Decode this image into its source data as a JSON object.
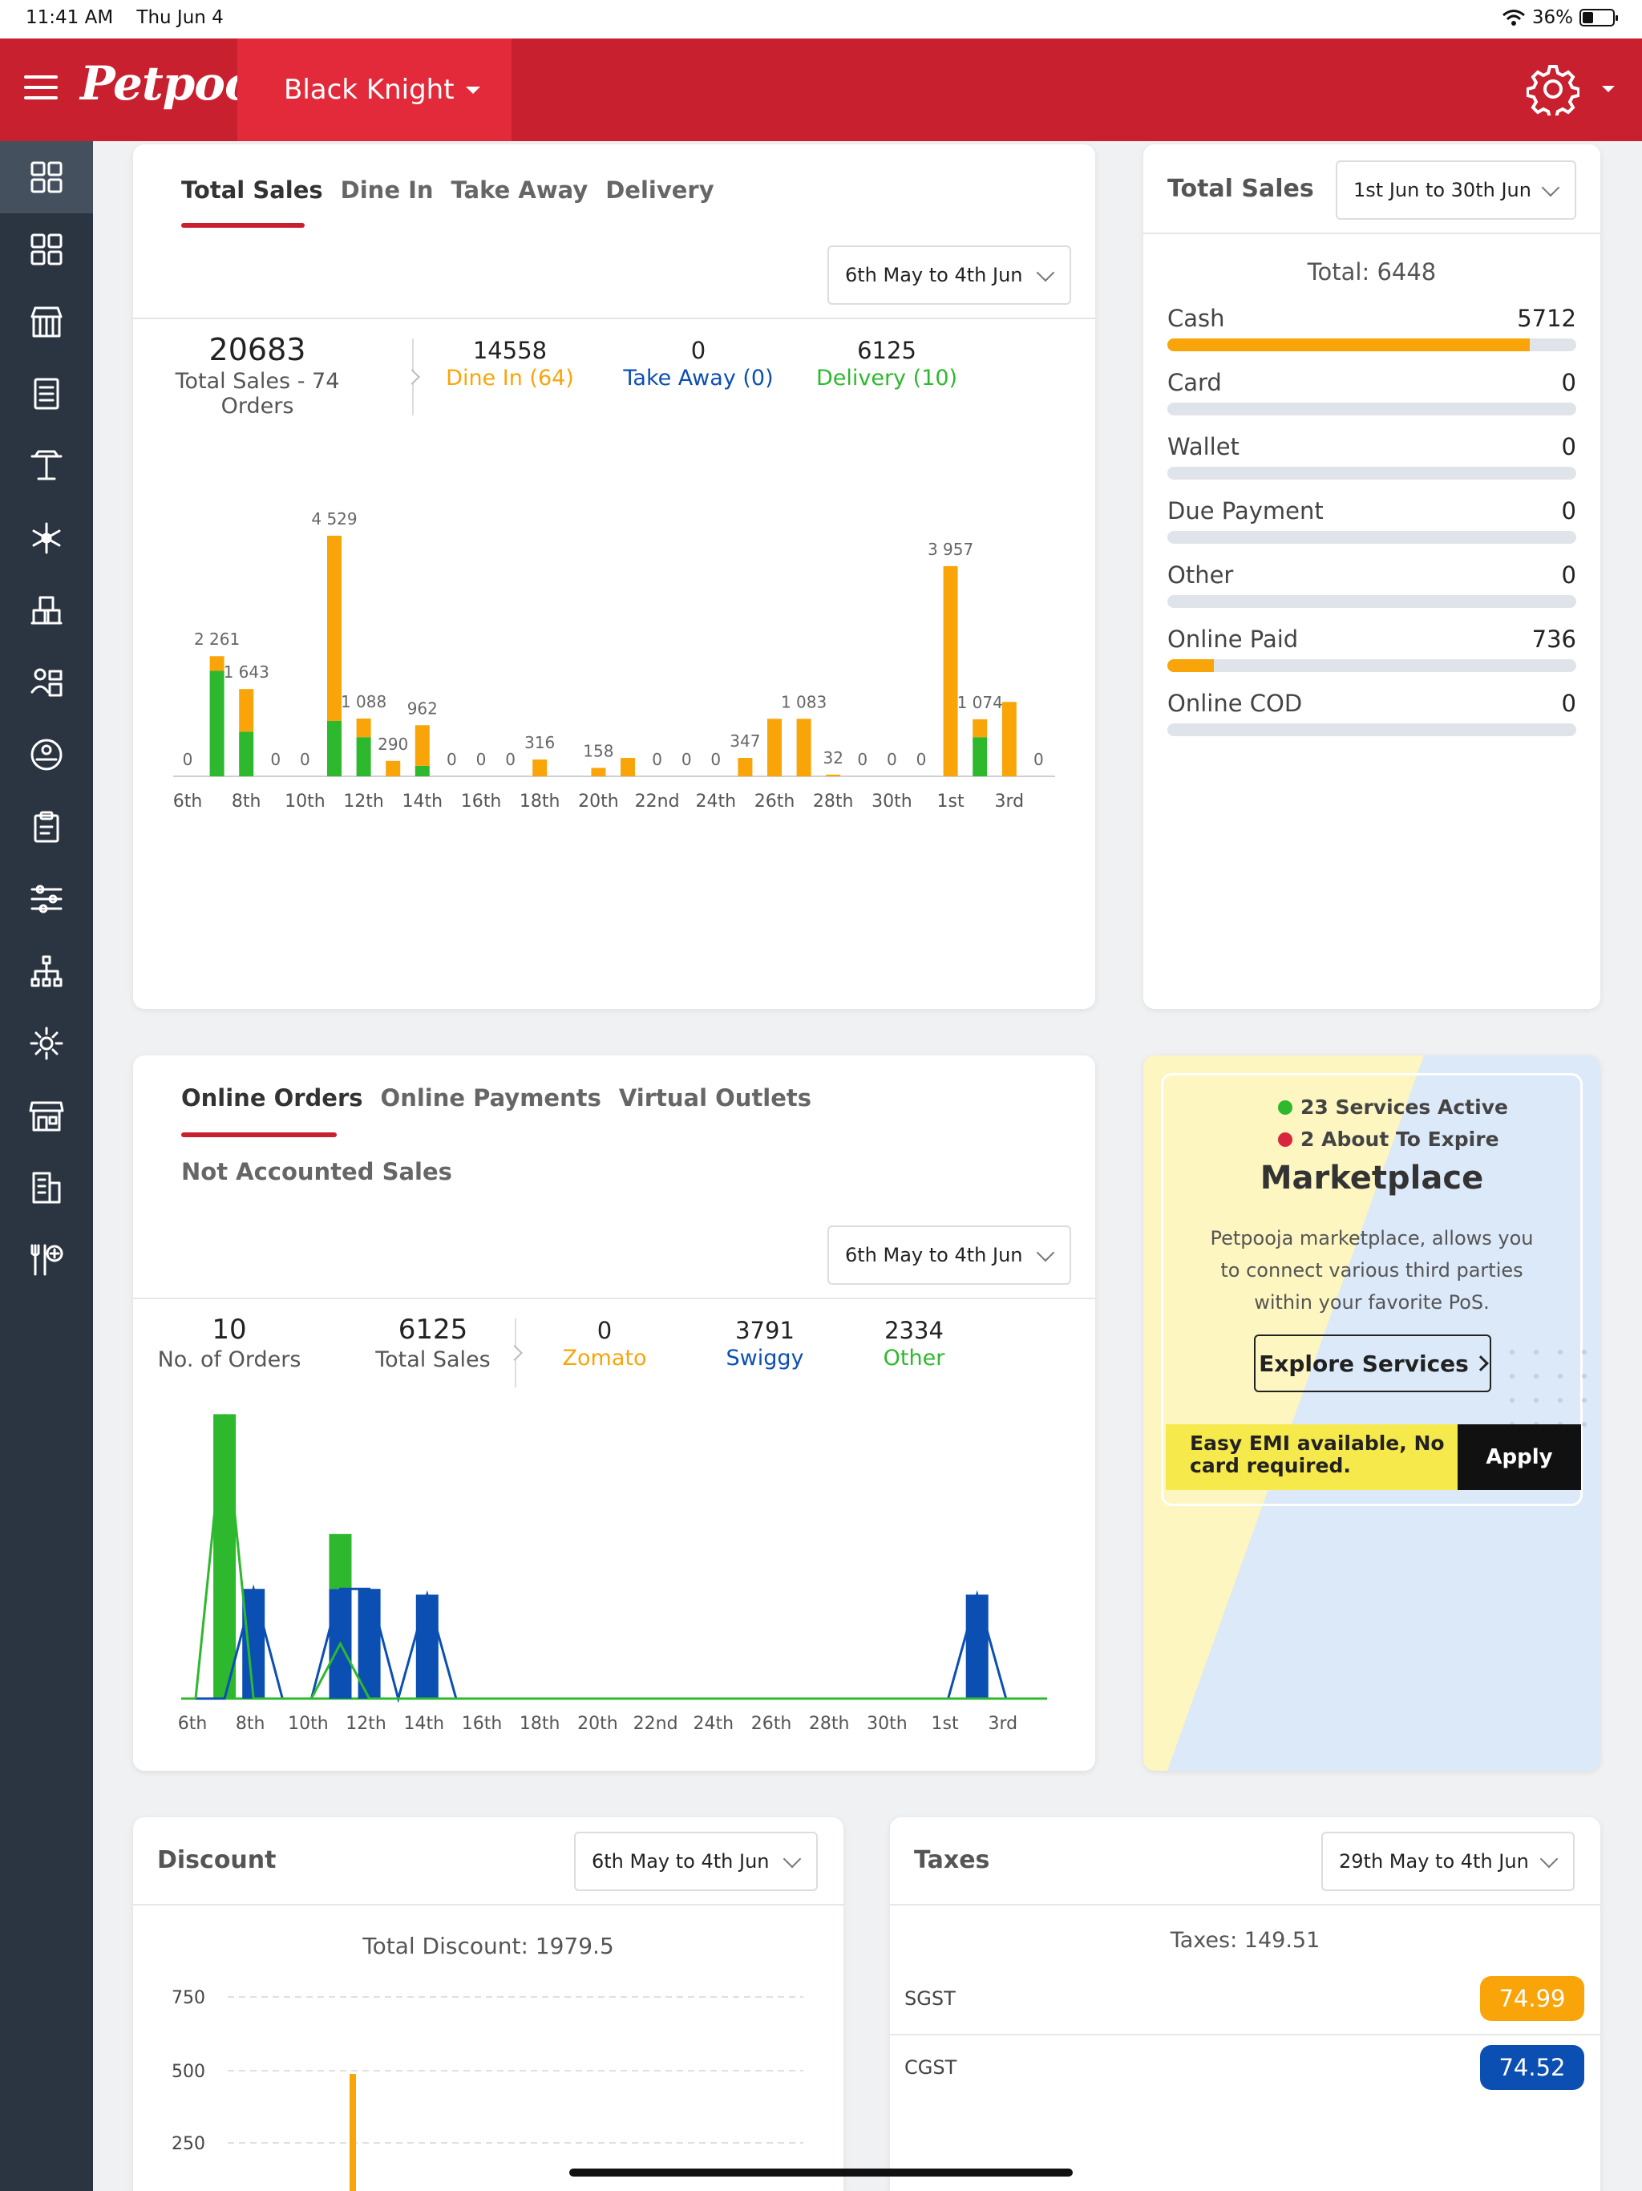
{
  "status_bar": {
    "time": "11:41 AM",
    "date": "Thu Jun 4",
    "battery": "36%",
    "battery_level": 0.36
  },
  "header": {
    "logo": "Petpooja",
    "outlet": "Black Knight"
  },
  "colors": {
    "brand": "#c8202f",
    "dine_in": "#f9a50a",
    "take_away": "#0b4fb3",
    "delivery": "#2eb82e",
    "sidebar": "#2b3441"
  },
  "sidebar": {
    "items": [
      {
        "icon": "dashboard-icon",
        "active": true
      },
      {
        "icon": "grid-icon"
      },
      {
        "icon": "store-icon"
      },
      {
        "icon": "receipt-icon"
      },
      {
        "icon": "table-icon"
      },
      {
        "icon": "snowflake-icon"
      },
      {
        "icon": "inventory-icon"
      },
      {
        "icon": "users-icon"
      },
      {
        "icon": "bowl-icon"
      },
      {
        "icon": "clipboard-icon"
      },
      {
        "icon": "sliders-icon"
      },
      {
        "icon": "hierarchy-icon"
      },
      {
        "icon": "settings-icon"
      },
      {
        "icon": "shop-icon"
      },
      {
        "icon": "building-icon"
      },
      {
        "icon": "menu-add-icon"
      }
    ]
  },
  "total_sales_card": {
    "tabs": [
      "Total Sales",
      "Dine In",
      "Take Away",
      "Delivery"
    ],
    "date_range": "6th May to 4th Jun",
    "total": "20683",
    "total_label": "Total Sales - 74 Orders",
    "dine_in_value": "14558",
    "dine_in_label": "Dine In (64)",
    "take_away_value": "0",
    "take_away_label": "Take Away (0)",
    "delivery_value": "6125",
    "delivery_label": "Delivery (10)"
  },
  "payments_card": {
    "title": "Total Sales",
    "date_range": "1st Jun to 30th Jun",
    "total_text": "Total: 6448",
    "rows": [
      {
        "label": "Cash",
        "value": "5712",
        "fraction": 0.886
      },
      {
        "label": "Card",
        "value": "0",
        "fraction": 0
      },
      {
        "label": "Wallet",
        "value": "0",
        "fraction": 0
      },
      {
        "label": "Due Payment",
        "value": "0",
        "fraction": 0
      },
      {
        "label": "Other",
        "value": "0",
        "fraction": 0
      },
      {
        "label": "Online Paid",
        "value": "736",
        "fraction": 0.114
      },
      {
        "label": "Online COD",
        "value": "0",
        "fraction": 0
      }
    ]
  },
  "online_card": {
    "tabs": [
      "Online Orders",
      "Online Payments",
      "Virtual Outlets"
    ],
    "subtab": "Not Accounted Sales",
    "date_range": "6th May to 4th Jun",
    "orders": "10",
    "orders_label": "No. of Orders",
    "sales": "6125",
    "sales_label": "Total Sales",
    "zomato_value": "0",
    "zomato_label": "Zomato",
    "swiggy_value": "3791",
    "swiggy_label": "Swiggy",
    "other_value": "2334",
    "other_label": "Other"
  },
  "marketplace": {
    "active_text": "23 Services Active",
    "expire_text": "2 About To Expire",
    "title": "Marketplace",
    "desc_lines": [
      "Petpooja marketplace, allows you",
      "to connect various third parties",
      "within your favorite PoS."
    ],
    "explore": "Explore Services",
    "emi_text": "Easy EMI available, No card required.",
    "apply": "Apply"
  },
  "discount_card": {
    "title": "Discount",
    "date_range": "6th May to 4th Jun",
    "total_text": "Total Discount: 1979.5"
  },
  "taxes_card": {
    "title": "Taxes",
    "date_range": "29th May to 4th Jun",
    "total_text": "Taxes: 149.51",
    "sgst_label": "SGST",
    "sgst_value": "74.99",
    "cgst_label": "CGST",
    "cgst_value": "74.52"
  },
  "chart_data": [
    {
      "type": "bar",
      "stacked": true,
      "categories": [
        "6th",
        "7th",
        "8th",
        "9th",
        "10th",
        "11th",
        "12th",
        "13th",
        "14th",
        "15th",
        "16th",
        "17th",
        "18th",
        "19th",
        "20th",
        "21st",
        "22nd",
        "23rd",
        "24th",
        "25th",
        "26th",
        "27th",
        "28th",
        "29th",
        "30th",
        "31st",
        "1st",
        "2nd",
        "3rd",
        "4th"
      ],
      "tick_labels": [
        "6th",
        "8th",
        "10th",
        "12th",
        "14th",
        "16th",
        "18th",
        "20th",
        "22nd",
        "24th",
        "26th",
        "28th",
        "30th",
        "1st",
        "3rd"
      ],
      "totals": [
        0,
        2261,
        1643,
        0,
        0,
        4529,
        1088,
        290,
        962,
        0,
        0,
        0,
        316,
        0,
        158,
        347,
        0,
        0,
        0,
        347,
        1083,
        1083,
        32,
        0,
        0,
        0,
        3957,
        1074,
        1400,
        0
      ],
      "data_labels": [
        "0",
        "2 261",
        "1 643",
        "0",
        "0",
        "4 529",
        "1 088",
        "290",
        "962",
        "0",
        "0",
        "0",
        "316",
        "",
        "158",
        "",
        "0",
        "0",
        "0",
        "347",
        "",
        "1 083",
        "32",
        "0",
        "0",
        "0",
        "3 957",
        "1 074",
        "",
        "0"
      ],
      "series": [
        {
          "name": "Dine In",
          "values": [
            0,
            276,
            804,
            0,
            0,
            3487,
            351,
            290,
            764,
            0,
            0,
            0,
            316,
            0,
            158,
            347,
            0,
            0,
            0,
            347,
            1083,
            1083,
            32,
            0,
            0,
            0,
            3957,
            337,
            1400,
            0
          ]
        },
        {
          "name": "Delivery",
          "values": [
            0,
            1985,
            839,
            0,
            0,
            1042,
            737,
            0,
            198,
            0,
            0,
            0,
            0,
            0,
            0,
            0,
            0,
            0,
            0,
            0,
            0,
            0,
            0,
            0,
            0,
            0,
            0,
            737,
            0,
            0
          ]
        }
      ]
    },
    {
      "type": "bar",
      "stacked": true,
      "categories": [
        "6th",
        "7th",
        "8th",
        "9th",
        "10th",
        "11th",
        "12th",
        "13th",
        "14th",
        "15th",
        "16th",
        "17th",
        "18th",
        "19th",
        "20th",
        "21st",
        "22nd",
        "23rd",
        "24th",
        "25th",
        "26th",
        "27th",
        "28th",
        "29th",
        "30th",
        "31st",
        "1st",
        "2nd",
        "3rd",
        "4th"
      ],
      "tick_labels": [
        "6th",
        "8th",
        "10th",
        "12th",
        "14th",
        "16th",
        "18th",
        "20th",
        "22nd",
        "24th",
        "26th",
        "28th",
        "30th",
        "1st",
        "3rd"
      ],
      "series": [
        {
          "name": "Swiggy",
          "values": [
            0,
            0,
            760,
            0,
            0,
            760,
            760,
            0,
            720,
            0,
            0,
            0,
            0,
            0,
            0,
            0,
            0,
            0,
            0,
            0,
            0,
            0,
            0,
            0,
            0,
            0,
            0,
            720,
            0,
            0
          ]
        },
        {
          "name": "Other",
          "values": [
            0,
            1970,
            0,
            0,
            0,
            380,
            0,
            0,
            0,
            0,
            0,
            0,
            0,
            0,
            0,
            0,
            0,
            0,
            0,
            0,
            0,
            0,
            0,
            0,
            0,
            0,
            0,
            0,
            0,
            0
          ]
        }
      ]
    },
    {
      "type": "bar",
      "title": "Total Discount: 1979.5",
      "y_ticks": [
        "750",
        "500",
        "250"
      ],
      "ylim": [
        0,
        750
      ]
    }
  ]
}
